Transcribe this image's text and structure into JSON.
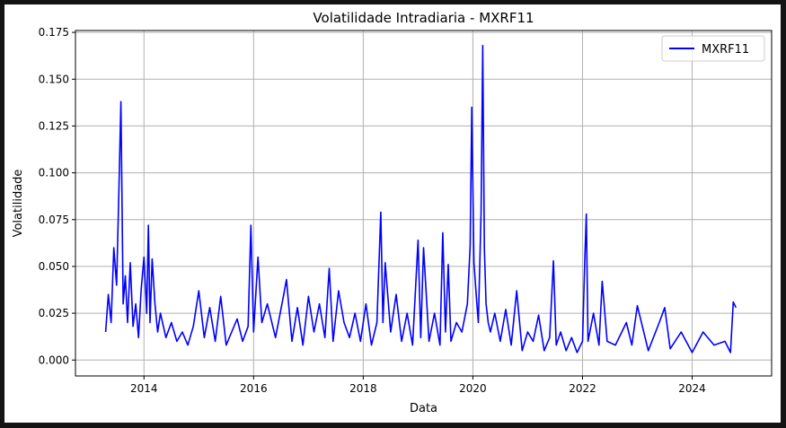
{
  "chart_data": {
    "type": "line",
    "title": "Volatilidade Intradiaria - MXRF11",
    "xlabel": "Data",
    "ylabel": "Volatilidade",
    "x_ticks": [
      "2014",
      "2016",
      "2018",
      "2020",
      "2022",
      "2024"
    ],
    "y_ticks": [
      "0.000",
      "0.025",
      "0.050",
      "0.075",
      "0.100",
      "0.125",
      "0.150",
      "0.175"
    ],
    "xlim": [
      2012.75,
      2025.45
    ],
    "ylim": [
      -0.0085,
      0.176
    ],
    "grid": true,
    "legend_position": "top-right",
    "series": [
      {
        "name": "MXRF11",
        "color": "#0000ff",
        "x": [
          2013.3,
          2013.35,
          2013.4,
          2013.45,
          2013.5,
          2013.54,
          2013.58,
          2013.62,
          2013.66,
          2013.7,
          2013.75,
          2013.8,
          2013.85,
          2013.9,
          2013.95,
          2014.0,
          2014.05,
          2014.08,
          2014.11,
          2014.15,
          2014.2,
          2014.25,
          2014.3,
          2014.4,
          2014.5,
          2014.6,
          2014.7,
          2014.8,
          2014.9,
          2015.0,
          2015.1,
          2015.2,
          2015.3,
          2015.4,
          2015.5,
          2015.6,
          2015.7,
          2015.8,
          2015.9,
          2015.95,
          2016.0,
          2016.08,
          2016.15,
          2016.25,
          2016.4,
          2016.55,
          2016.6,
          2016.7,
          2016.8,
          2016.9,
          2017.0,
          2017.1,
          2017.2,
          2017.3,
          2017.38,
          2017.45,
          2017.55,
          2017.65,
          2017.75,
          2017.85,
          2017.95,
          2018.05,
          2018.15,
          2018.25,
          2018.32,
          2018.36,
          2018.4,
          2018.5,
          2018.6,
          2018.7,
          2018.8,
          2018.9,
          2019.0,
          2019.05,
          2019.1,
          2019.2,
          2019.3,
          2019.4,
          2019.45,
          2019.5,
          2019.55,
          2019.6,
          2019.7,
          2019.8,
          2019.9,
          2019.95,
          2019.98,
          2020.02,
          2020.06,
          2020.1,
          2020.15,
          2020.18,
          2020.21,
          2020.24,
          2020.28,
          2020.32,
          2020.4,
          2020.5,
          2020.6,
          2020.7,
          2020.8,
          2020.9,
          2021.0,
          2021.1,
          2021.2,
          2021.3,
          2021.4,
          2021.47,
          2021.52,
          2021.6,
          2021.7,
          2021.8,
          2021.9,
          2022.0,
          2022.04,
          2022.07,
          2022.1,
          2022.2,
          2022.3,
          2022.36,
          2022.45,
          2022.6,
          2022.8,
          2022.9,
          2023.0,
          2023.2,
          2023.4,
          2023.5,
          2023.6,
          2023.8,
          2024.0,
          2024.2,
          2024.4,
          2024.6,
          2024.7,
          2024.75,
          2024.8
        ],
        "values": [
          0.015,
          0.035,
          0.02,
          0.06,
          0.04,
          0.087,
          0.138,
          0.03,
          0.045,
          0.02,
          0.052,
          0.018,
          0.03,
          0.012,
          0.038,
          0.055,
          0.025,
          0.072,
          0.02,
          0.054,
          0.03,
          0.015,
          0.025,
          0.012,
          0.02,
          0.01,
          0.015,
          0.008,
          0.018,
          0.037,
          0.012,
          0.028,
          0.01,
          0.034,
          0.008,
          0.015,
          0.022,
          0.01,
          0.018,
          0.072,
          0.015,
          0.055,
          0.02,
          0.03,
          0.012,
          0.035,
          0.043,
          0.01,
          0.028,
          0.008,
          0.034,
          0.015,
          0.03,
          0.012,
          0.049,
          0.01,
          0.037,
          0.02,
          0.012,
          0.025,
          0.01,
          0.03,
          0.008,
          0.02,
          0.079,
          0.02,
          0.052,
          0.015,
          0.035,
          0.01,
          0.025,
          0.008,
          0.064,
          0.012,
          0.06,
          0.01,
          0.025,
          0.008,
          0.068,
          0.015,
          0.051,
          0.01,
          0.02,
          0.015,
          0.03,
          0.061,
          0.135,
          0.052,
          0.035,
          0.02,
          0.08,
          0.168,
          0.06,
          0.03,
          0.02,
          0.015,
          0.025,
          0.01,
          0.027,
          0.008,
          0.037,
          0.005,
          0.015,
          0.01,
          0.024,
          0.005,
          0.012,
          0.053,
          0.008,
          0.015,
          0.005,
          0.012,
          0.004,
          0.01,
          0.052,
          0.078,
          0.01,
          0.025,
          0.008,
          0.042,
          0.01,
          0.008,
          0.02,
          0.008,
          0.029,
          0.005,
          0.02,
          0.028,
          0.006,
          0.015,
          0.004,
          0.015,
          0.008,
          0.01,
          0.004,
          0.031,
          0.028
        ]
      }
    ]
  }
}
